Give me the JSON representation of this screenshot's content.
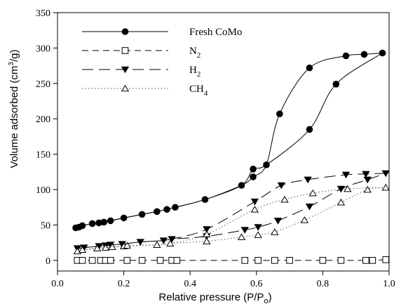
{
  "chart_data": {
    "type": "line",
    "xlabel": "Relative pressure (P/P",
    "xlabel_sub": "o",
    "xlabel_end": ")",
    "ylabel": "Volume adsorbed (cm",
    "ylabel_sup": "3",
    "ylabel_end": "/g)",
    "xlim": [
      0.0,
      1.0
    ],
    "ylim": [
      -15,
      350
    ],
    "xticks": [
      0.0,
      0.2,
      0.4,
      0.6,
      0.8,
      1.0
    ],
    "xtick_labels": [
      "0.0",
      "0.2",
      "0.4",
      "0.6",
      "0.8",
      "1.0"
    ],
    "yticks": [
      0,
      50,
      100,
      150,
      200,
      250,
      300,
      350
    ],
    "ytick_labels": [
      "0",
      "50",
      "100",
      "150",
      "200",
      "250",
      "300",
      "350"
    ],
    "grid": false,
    "legend_position": "top-left",
    "series": [
      {
        "name": "Fresh CoMo",
        "name_main": "Fresh CoMo",
        "name_sub": "",
        "marker": "filled-circle",
        "line": "solid",
        "line_color": "#000000",
        "adsorption": [
          [
            0.055,
            46
          ],
          [
            0.065,
            47
          ],
          [
            0.075,
            49
          ],
          [
            0.105,
            52
          ],
          [
            0.125,
            53
          ],
          [
            0.14,
            54
          ],
          [
            0.16,
            56
          ],
          [
            0.2,
            60
          ],
          [
            0.255,
            65
          ],
          [
            0.3,
            69
          ],
          [
            0.33,
            72
          ],
          [
            0.355,
            75
          ],
          [
            0.445,
            86
          ],
          [
            0.555,
            106
          ],
          [
            0.59,
            118
          ],
          [
            0.63,
            135
          ],
          [
            0.67,
            207
          ],
          [
            0.76,
            272
          ],
          [
            0.87,
            289
          ],
          [
            0.925,
            291
          ],
          [
            0.98,
            293
          ]
        ],
        "desorption": [
          [
            0.98,
            293
          ],
          [
            0.84,
            249
          ],
          [
            0.76,
            185
          ],
          [
            0.63,
            135
          ],
          [
            0.59,
            129
          ],
          [
            0.555,
            106
          ],
          [
            0.445,
            86
          ],
          [
            0.355,
            75
          ],
          [
            0.3,
            69
          ],
          [
            0.255,
            65
          ],
          [
            0.2,
            60
          ],
          [
            0.16,
            56
          ],
          [
            0.105,
            52
          ],
          [
            0.075,
            49
          ],
          [
            0.055,
            46
          ]
        ]
      },
      {
        "name": "N2",
        "name_main": "N",
        "name_sub": "2",
        "marker": "open-square",
        "line": "dash",
        "line_color": "#000000",
        "adsorption": [
          [
            0.06,
            0
          ],
          [
            0.075,
            0
          ],
          [
            0.105,
            0
          ],
          [
            0.13,
            0
          ],
          [
            0.145,
            0
          ],
          [
            0.16,
            0
          ],
          [
            0.21,
            0
          ],
          [
            0.255,
            0
          ],
          [
            0.31,
            0
          ],
          [
            0.345,
            0
          ],
          [
            0.36,
            0
          ],
          [
            0.565,
            0
          ],
          [
            0.605,
            0
          ],
          [
            0.655,
            0
          ],
          [
            0.7,
            0
          ],
          [
            0.8,
            0
          ],
          [
            0.855,
            0
          ],
          [
            0.93,
            0
          ],
          [
            0.95,
            0
          ],
          [
            0.99,
            1
          ]
        ],
        "desorption": []
      },
      {
        "name": "H2",
        "name_main": "H",
        "name_sub": "2",
        "marker": "filled-triangle-down",
        "line": "long-dash",
        "line_color": "#000000",
        "adsorption": [
          [
            0.06,
            17
          ],
          [
            0.08,
            18
          ],
          [
            0.125,
            20
          ],
          [
            0.145,
            21
          ],
          [
            0.16,
            22
          ],
          [
            0.195,
            23
          ],
          [
            0.25,
            26
          ],
          [
            0.32,
            28
          ],
          [
            0.345,
            30
          ],
          [
            0.45,
            34
          ],
          [
            0.565,
            43
          ],
          [
            0.605,
            47
          ],
          [
            0.665,
            56
          ],
          [
            0.76,
            76
          ],
          [
            0.855,
            101
          ],
          [
            0.935,
            114
          ],
          [
            0.99,
            123
          ]
        ],
        "desorption": [
          [
            0.99,
            123
          ],
          [
            0.93,
            122
          ],
          [
            0.87,
            121
          ],
          [
            0.755,
            114
          ],
          [
            0.675,
            106
          ],
          [
            0.595,
            83
          ],
          [
            0.45,
            44
          ],
          [
            0.345,
            30
          ],
          [
            0.32,
            28
          ],
          [
            0.25,
            26
          ],
          [
            0.195,
            23
          ],
          [
            0.145,
            21
          ],
          [
            0.08,
            18
          ],
          [
            0.06,
            17
          ]
        ]
      },
      {
        "name": "CH4",
        "name_main": "CH",
        "name_sub": "4",
        "marker": "open-triangle-up",
        "line": "dot",
        "line_color": "#555555",
        "adsorption": [
          [
            0.06,
            13
          ],
          [
            0.075,
            15
          ],
          [
            0.12,
            17
          ],
          [
            0.145,
            18
          ],
          [
            0.165,
            19
          ],
          [
            0.2,
            20
          ],
          [
            0.21,
            21
          ],
          [
            0.3,
            22
          ],
          [
            0.34,
            24
          ],
          [
            0.45,
            27
          ],
          [
            0.555,
            33
          ],
          [
            0.605,
            36
          ],
          [
            0.655,
            40
          ],
          [
            0.745,
            57
          ],
          [
            0.855,
            82
          ],
          [
            0.935,
            100
          ],
          [
            0.99,
            103
          ]
        ],
        "desorption": [
          [
            0.99,
            103
          ],
          [
            0.875,
            101
          ],
          [
            0.77,
            95
          ],
          [
            0.685,
            86
          ],
          [
            0.595,
            72
          ],
          [
            0.45,
            37
          ],
          [
            0.34,
            24
          ],
          [
            0.3,
            22
          ],
          [
            0.2,
            20
          ],
          [
            0.12,
            17
          ],
          [
            0.06,
            13
          ]
        ]
      }
    ]
  }
}
